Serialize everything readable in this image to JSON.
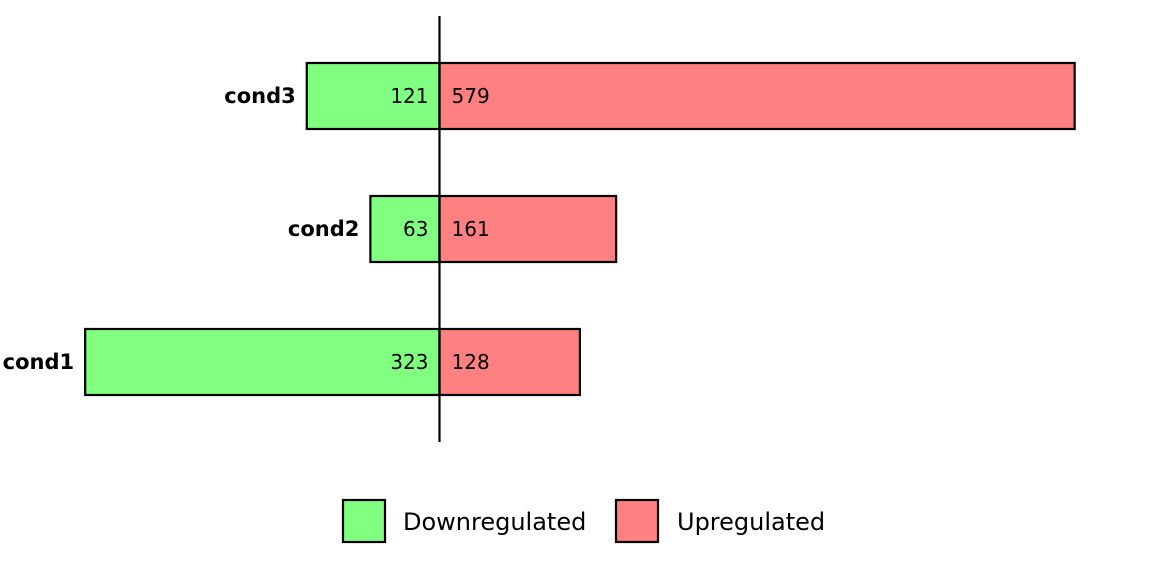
{
  "chart_data": {
    "type": "bar",
    "orientation": "horizontal",
    "diverging": true,
    "categories": [
      "cond1",
      "cond2",
      "cond3"
    ],
    "series": [
      {
        "name": "Downregulated",
        "values": [
          323,
          63,
          121
        ],
        "color": "#80ff80",
        "direction": "left"
      },
      {
        "name": "Upregulated",
        "values": [
          128,
          161,
          579
        ],
        "color": "#ff8080",
        "direction": "right"
      }
    ],
    "grid": false,
    "legend_position": "bottom-center"
  }
}
